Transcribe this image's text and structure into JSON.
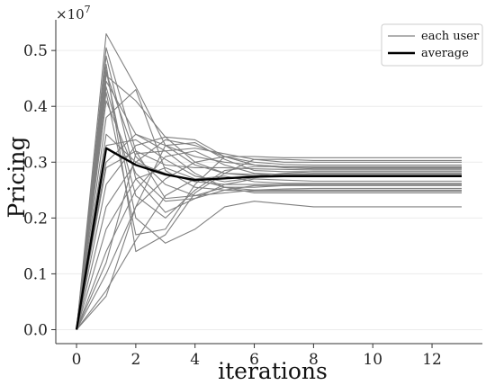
{
  "chart_data": {
    "type": "line",
    "xlabel": "iterations",
    "ylabel": "Pricing",
    "y_scale_label": "×10",
    "y_scale_exponent": "7",
    "xlim": [
      -0.7,
      13.7
    ],
    "ylim": [
      -0.25,
      5.55
    ],
    "y_unit_multiplier": 10000000,
    "x_ticks": [
      0,
      2,
      4,
      6,
      8,
      10,
      12
    ],
    "x_tick_labels": [
      "0",
      "2",
      "4",
      "6",
      "8",
      "10",
      "12"
    ],
    "y_ticks": [
      0,
      1,
      2,
      3,
      4,
      5
    ],
    "y_tick_labels": [
      "0.0",
      "0.1",
      "0.2",
      "0.3",
      "0.4",
      "0.5"
    ],
    "grid": "horizontal",
    "legend_position": "top-right",
    "legend": [
      {
        "label": "each user",
        "style": "user"
      },
      {
        "label": "average",
        "style": "average"
      }
    ],
    "colors": {
      "user": "#808080",
      "average": "#000000"
    },
    "x": [
      0,
      1,
      2,
      3,
      4,
      5,
      6,
      7,
      8,
      9,
      10,
      11,
      12,
      13
    ],
    "series": [
      {
        "role": "user",
        "values": [
          0,
          5.3,
          4.35,
          3.3,
          3.1,
          3.0,
          2.95,
          2.92,
          2.9,
          2.9,
          2.9,
          2.9,
          2.9,
          2.9
        ]
      },
      {
        "role": "user",
        "values": [
          0,
          5.05,
          3.2,
          2.35,
          2.4,
          2.55,
          2.5,
          2.5,
          2.5,
          2.5,
          2.5,
          2.5,
          2.5,
          2.5
        ]
      },
      {
        "role": "user",
        "values": [
          0,
          4.9,
          2.7,
          2.1,
          2.35,
          2.6,
          2.7,
          2.68,
          2.66,
          2.66,
          2.66,
          2.66,
          2.66,
          2.66
        ]
      },
      {
        "role": "user",
        "values": [
          0,
          4.75,
          1.4,
          1.7,
          2.45,
          2.8,
          3.05,
          3.05,
          3.03,
          3.03,
          3.03,
          3.03,
          3.03,
          3.03
        ]
      },
      {
        "role": "user",
        "values": [
          0,
          4.65,
          2.0,
          1.55,
          1.8,
          2.2,
          2.3,
          2.25,
          2.2,
          2.2,
          2.2,
          2.2,
          2.2,
          2.2
        ]
      },
      {
        "role": "user",
        "values": [
          0,
          4.55,
          4.1,
          3.45,
          3.0,
          2.8,
          2.78,
          2.78,
          2.78,
          2.78,
          2.78,
          2.78,
          2.78,
          2.78
        ]
      },
      {
        "role": "user",
        "values": [
          0,
          4.45,
          3.5,
          3.2,
          2.8,
          2.55,
          2.55,
          2.58,
          2.6,
          2.6,
          2.6,
          2.6,
          2.6,
          2.6
        ]
      },
      {
        "role": "user",
        "values": [
          0,
          4.35,
          2.4,
          2.0,
          2.5,
          2.85,
          2.92,
          2.92,
          2.92,
          2.92,
          2.92,
          2.92,
          2.92,
          2.92
        ]
      },
      {
        "role": "user",
        "values": [
          0,
          4.25,
          1.7,
          1.8,
          2.6,
          3.1,
          3.1,
          3.08,
          3.08,
          3.08,
          3.08,
          3.08,
          3.08,
          3.08
        ]
      },
      {
        "role": "user",
        "values": [
          0,
          3.5,
          3.0,
          3.4,
          3.3,
          3.1,
          2.95,
          2.92,
          2.92,
          2.92,
          2.92,
          2.92,
          2.92,
          2.92
        ]
      },
      {
        "role": "user",
        "values": [
          0,
          3.3,
          3.4,
          3.05,
          2.75,
          2.65,
          2.72,
          2.78,
          2.8,
          2.8,
          2.8,
          2.8,
          2.8,
          2.8
        ]
      },
      {
        "role": "user",
        "values": [
          0,
          3.0,
          3.5,
          3.3,
          2.95,
          2.8,
          2.75,
          2.8,
          2.83,
          2.83,
          2.83,
          2.83,
          2.83,
          2.83
        ]
      },
      {
        "role": "user",
        "values": [
          0,
          2.6,
          3.3,
          3.45,
          3.4,
          3.1,
          2.95,
          2.9,
          2.88,
          2.88,
          2.88,
          2.88,
          2.88,
          2.88
        ]
      },
      {
        "role": "user",
        "values": [
          0,
          2.2,
          3.0,
          2.8,
          2.65,
          2.6,
          2.6,
          2.6,
          2.6,
          2.6,
          2.6,
          2.6,
          2.6,
          2.6
        ]
      },
      {
        "role": "user",
        "values": [
          0,
          1.8,
          2.7,
          2.9,
          2.7,
          2.55,
          2.45,
          2.45,
          2.45,
          2.45,
          2.45,
          2.45,
          2.45,
          2.45
        ]
      },
      {
        "role": "user",
        "values": [
          0,
          1.4,
          2.5,
          3.1,
          3.2,
          2.95,
          2.8,
          2.78,
          2.78,
          2.78,
          2.78,
          2.78,
          2.78,
          2.78
        ]
      },
      {
        "role": "user",
        "values": [
          0,
          1.0,
          2.2,
          2.7,
          3.0,
          3.1,
          3.0,
          2.96,
          2.95,
          2.95,
          2.95,
          2.95,
          2.95,
          2.95
        ]
      },
      {
        "role": "user",
        "values": [
          0,
          0.7,
          1.6,
          2.4,
          2.7,
          2.75,
          2.65,
          2.62,
          2.62,
          2.62,
          2.62,
          2.62,
          2.62,
          2.62
        ]
      },
      {
        "role": "user",
        "values": [
          0,
          0.6,
          2.2,
          3.3,
          3.35,
          3.05,
          2.85,
          2.83,
          2.83,
          2.83,
          2.83,
          2.83,
          2.83,
          2.83
        ]
      },
      {
        "role": "user",
        "values": [
          0,
          4.6,
          3.1,
          2.6,
          2.4,
          2.45,
          2.5,
          2.52,
          2.53,
          2.53,
          2.53,
          2.53,
          2.53,
          2.53
        ]
      },
      {
        "role": "user",
        "values": [
          0,
          4.1,
          2.8,
          2.3,
          2.35,
          2.5,
          2.58,
          2.58,
          2.58,
          2.58,
          2.58,
          2.58,
          2.58,
          2.58
        ]
      },
      {
        "role": "user",
        "values": [
          0,
          2.9,
          3.2,
          2.95,
          2.9,
          2.9,
          2.88,
          2.87,
          2.86,
          2.86,
          2.86,
          2.86,
          2.86,
          2.86
        ]
      },
      {
        "role": "user",
        "values": [
          0,
          1.2,
          3.15,
          3.2,
          3.25,
          3.15,
          3.05,
          3.0,
          3.0,
          3.0,
          3.0,
          3.0,
          3.0,
          3.0
        ]
      },
      {
        "role": "user",
        "values": [
          0,
          3.8,
          4.3,
          2.85,
          2.55,
          2.5,
          2.48,
          2.48,
          2.48,
          2.48,
          2.48,
          2.48,
          2.48,
          2.48
        ]
      },
      {
        "role": "average",
        "values": [
          0,
          3.25,
          2.95,
          2.78,
          2.68,
          2.71,
          2.74,
          2.75,
          2.75,
          2.75,
          2.75,
          2.75,
          2.75,
          2.75
        ]
      }
    ]
  }
}
